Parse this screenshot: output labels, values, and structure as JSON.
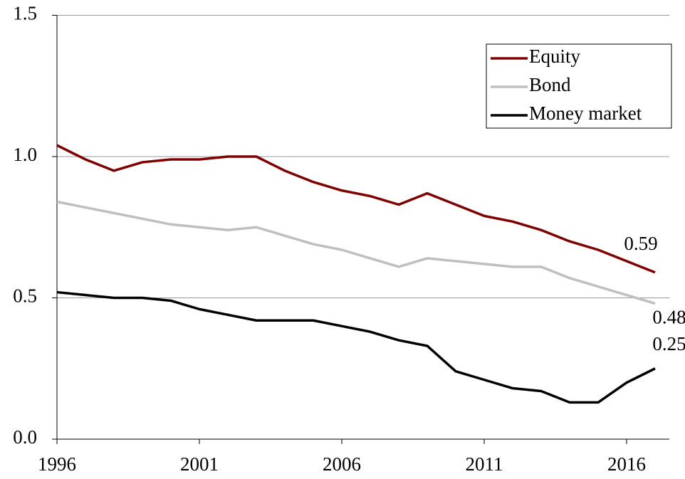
{
  "chart_data": {
    "type": "line",
    "x": [
      1996,
      1997,
      1998,
      1999,
      2000,
      2001,
      2002,
      2003,
      2004,
      2005,
      2006,
      2007,
      2008,
      2009,
      2010,
      2011,
      2012,
      2013,
      2014,
      2015,
      2016,
      2017
    ],
    "series": [
      {
        "name": "Equity",
        "color": "#800000",
        "values": [
          1.04,
          0.99,
          0.95,
          0.98,
          0.99,
          0.99,
          1.0,
          1.0,
          0.95,
          0.91,
          0.88,
          0.86,
          0.83,
          0.87,
          0.83,
          0.79,
          0.77,
          0.74,
          0.7,
          0.67,
          0.63,
          0.59
        ]
      },
      {
        "name": "Bond",
        "color": "#bfbfbf",
        "values": [
          0.84,
          0.82,
          0.8,
          0.78,
          0.76,
          0.75,
          0.74,
          0.75,
          0.72,
          0.69,
          0.67,
          0.64,
          0.61,
          0.64,
          0.63,
          0.62,
          0.61,
          0.61,
          0.57,
          0.54,
          0.51,
          0.48
        ]
      },
      {
        "name": "Money market",
        "color": "#000000",
        "values": [
          0.52,
          0.51,
          0.5,
          0.5,
          0.49,
          0.46,
          0.44,
          0.42,
          0.42,
          0.42,
          0.4,
          0.38,
          0.35,
          0.33,
          0.24,
          0.21,
          0.18,
          0.17,
          0.13,
          0.13,
          0.2,
          0.25
        ]
      }
    ],
    "xlim": [
      1996,
      2017.5
    ],
    "xticks": [
      1996,
      2001,
      2006,
      2011,
      2016
    ],
    "ylim": [
      0,
      1.5
    ],
    "yticks": [
      {
        "value": 0,
        "label": "0.0"
      },
      0.5,
      {
        "value": 1,
        "label": "1.0"
      },
      1.5
    ],
    "grid": true,
    "legend": "upper right"
  }
}
